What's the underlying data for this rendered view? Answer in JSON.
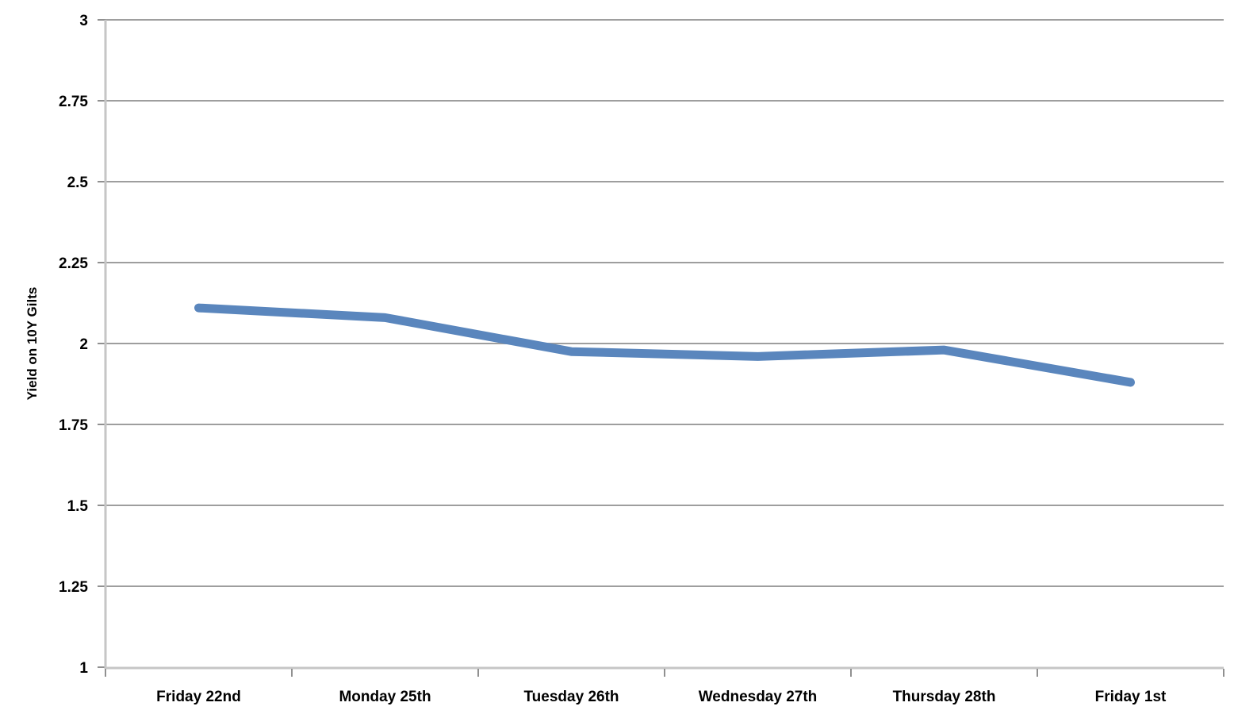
{
  "chart_data": {
    "type": "line",
    "title": "",
    "xlabel": "",
    "ylabel": "Yield on 10Y Gilts",
    "categories": [
      "Friday 22nd",
      "Monday 25th",
      "Tuesday 26th",
      "Wednesday 27th",
      "Thursday 28th",
      "Friday 1st"
    ],
    "series": [
      {
        "name": "Yield on 10Y Gilts",
        "values": [
          2.11,
          2.08,
          1.975,
          1.96,
          1.98,
          1.88
        ]
      }
    ],
    "ylim": [
      1,
      3
    ],
    "ytick_step": 0.25,
    "ytick_labels": [
      "3",
      "2.75",
      "2.5",
      "2.25",
      "2",
      "1.75",
      "1.5",
      "1.25",
      "1"
    ],
    "grid": true,
    "legend": "none",
    "colors": {
      "line": "#5A86BD",
      "gridline": "#9E9E9E",
      "axis_line": "#C6C6C6",
      "tick_mark": "#909090",
      "label_text": "#000000",
      "background": "#FFFFFF"
    }
  }
}
